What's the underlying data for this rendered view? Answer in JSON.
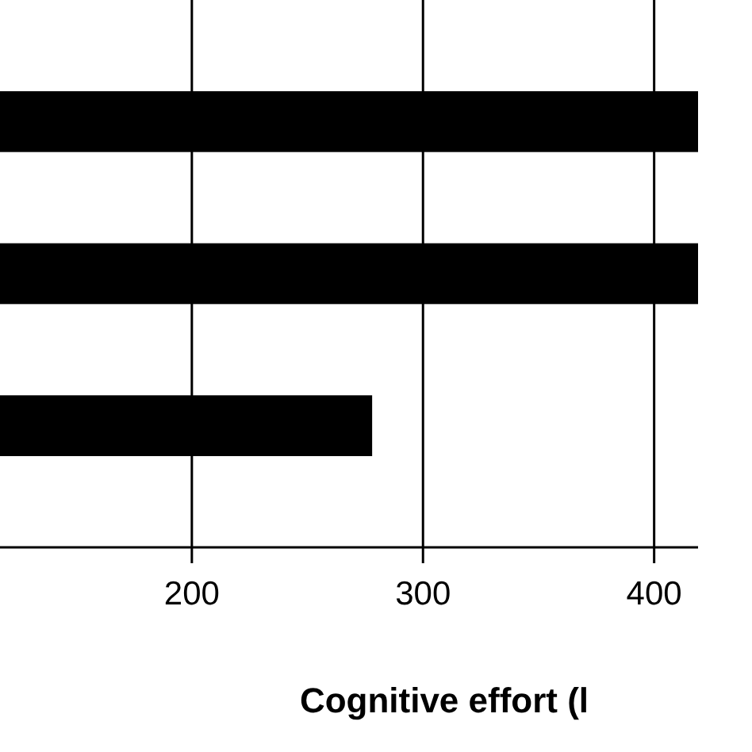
{
  "chart_data": {
    "type": "bar",
    "orientation": "horizontal",
    "categories": [
      null,
      null,
      null
    ],
    "values": [
      419,
      419,
      278
    ],
    "color": "#000000",
    "xlim": [
      117,
      419
    ],
    "xticks": [
      200,
      300,
      400
    ],
    "grid": "x",
    "xlabel": "Cognitive effort (l"
  }
}
